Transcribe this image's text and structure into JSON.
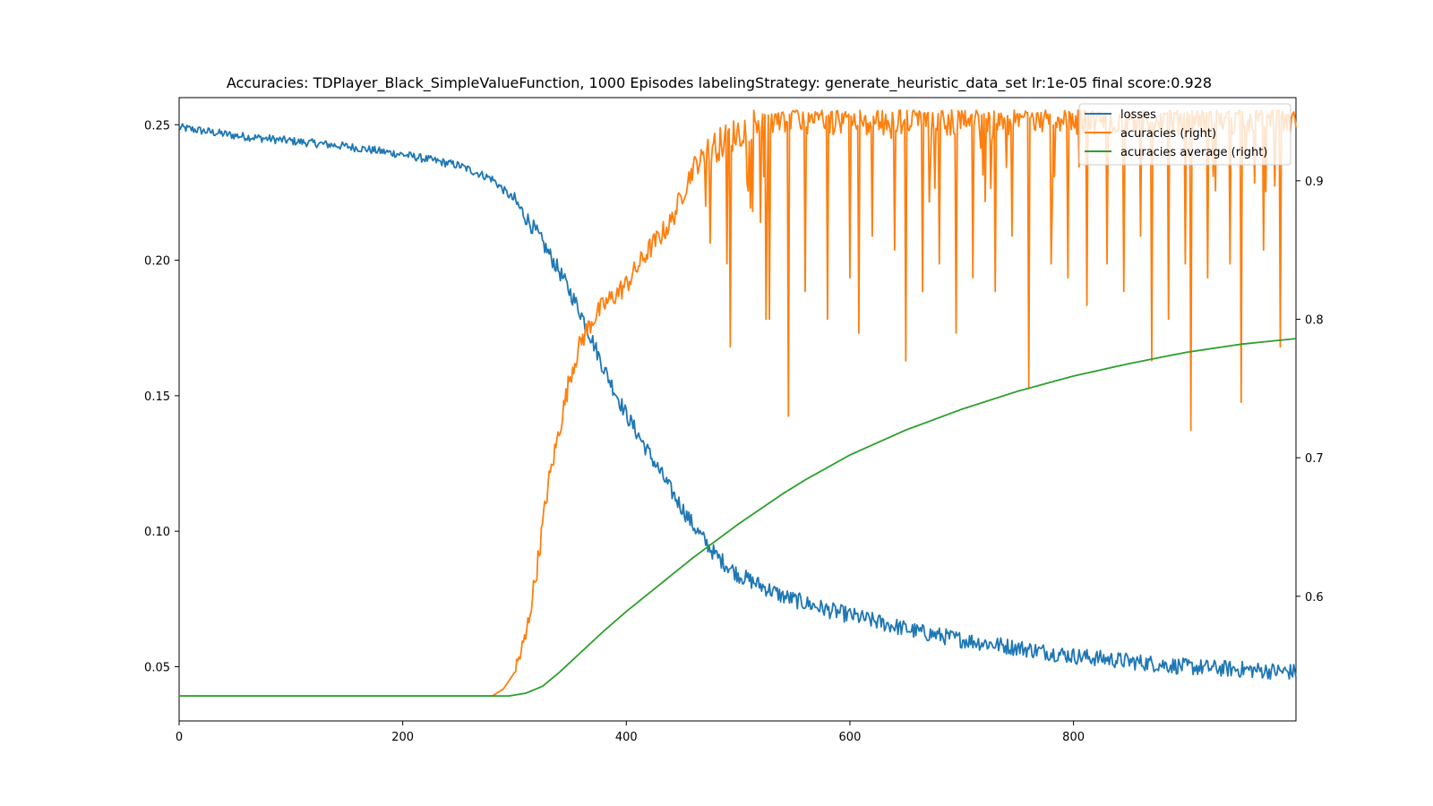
{
  "chart_data": {
    "type": "line",
    "title": "Accuracies: TDPlayer_Black_SimpleValueFunction, 1000 Episodes labelingStrategy: generate_heuristic_data_set lr:1e-05 final score:0.928",
    "xlabel": "",
    "ylabel": "",
    "ylabel_right": "",
    "xlim": [
      0,
      999
    ],
    "ylim_left": [
      0.03,
      0.26
    ],
    "ylim_right": [
      0.51,
      0.96
    ],
    "x_ticks": [
      0,
      200,
      400,
      600,
      800
    ],
    "y_ticks_left": [
      0.05,
      0.1,
      0.15,
      0.2,
      0.25
    ],
    "y_ticks_right": [
      0.6,
      0.7,
      0.8,
      0.9
    ],
    "grid": false,
    "legend_position": "top-right",
    "series": [
      {
        "name": "losses",
        "axis": "left",
        "color": "#1f77b4",
        "noise": 0.0028,
        "x": [
          0,
          50,
          100,
          150,
          200,
          250,
          280,
          300,
          320,
          340,
          360,
          380,
          400,
          420,
          440,
          460,
          480,
          500,
          540,
          580,
          620,
          660,
          700,
          750,
          800,
          850,
          900,
          950,
          999
        ],
        "values": [
          0.249,
          0.246,
          0.244,
          0.242,
          0.239,
          0.235,
          0.23,
          0.222,
          0.21,
          0.196,
          0.18,
          0.16,
          0.143,
          0.129,
          0.115,
          0.102,
          0.091,
          0.084,
          0.076,
          0.071,
          0.067,
          0.063,
          0.06,
          0.057,
          0.054,
          0.052,
          0.05,
          0.049,
          0.048
        ]
      },
      {
        "name": "acuracies (right)",
        "axis": "right",
        "color": "#ff7f0e",
        "x": [
          0,
          280,
          290,
          300,
          310,
          320,
          330,
          340,
          350,
          360,
          370,
          380,
          400,
          420,
          440,
          450,
          460,
          480,
          500,
          520,
          999
        ],
        "values": [
          0.528,
          0.528,
          0.533,
          0.545,
          0.57,
          0.62,
          0.68,
          0.72,
          0.76,
          0.785,
          0.8,
          0.81,
          0.825,
          0.85,
          0.87,
          0.89,
          0.91,
          0.925,
          0.935,
          0.945,
          0.945
        ],
        "dips": [
          [
            475,
            0.855
          ],
          [
            490,
            0.84
          ],
          [
            493,
            0.78
          ],
          [
            520,
            0.87
          ],
          [
            525,
            0.8
          ],
          [
            528,
            0.8
          ],
          [
            545,
            0.73
          ],
          [
            560,
            0.82
          ],
          [
            580,
            0.8
          ],
          [
            600,
            0.83
          ],
          [
            608,
            0.79
          ],
          [
            620,
            0.86
          ],
          [
            640,
            0.85
          ],
          [
            650,
            0.77
          ],
          [
            665,
            0.82
          ],
          [
            680,
            0.84
          ],
          [
            695,
            0.79
          ],
          [
            710,
            0.83
          ],
          [
            730,
            0.82
          ],
          [
            745,
            0.86
          ],
          [
            760,
            0.75
          ],
          [
            780,
            0.84
          ],
          [
            795,
            0.83
          ],
          [
            812,
            0.81
          ],
          [
            830,
            0.84
          ],
          [
            845,
            0.82
          ],
          [
            860,
            0.86
          ],
          [
            870,
            0.77
          ],
          [
            885,
            0.8
          ],
          [
            900,
            0.84
          ],
          [
            905,
            0.72
          ],
          [
            920,
            0.83
          ],
          [
            940,
            0.84
          ],
          [
            950,
            0.74
          ],
          [
            970,
            0.85
          ],
          [
            985,
            0.78
          ]
        ]
      },
      {
        "name": "acuracies average (right)",
        "axis": "right",
        "color": "#2ca02c",
        "x": [
          0,
          295,
          310,
          325,
          340,
          360,
          380,
          400,
          420,
          440,
          460,
          480,
          500,
          520,
          540,
          560,
          580,
          600,
          650,
          700,
          750,
          800,
          850,
          900,
          950,
          999
        ],
        "values": [
          0.528,
          0.528,
          0.53,
          0.535,
          0.545,
          0.56,
          0.575,
          0.589,
          0.602,
          0.615,
          0.628,
          0.64,
          0.652,
          0.663,
          0.674,
          0.684,
          0.693,
          0.702,
          0.72,
          0.735,
          0.748,
          0.759,
          0.768,
          0.776,
          0.782,
          0.786
        ]
      }
    ]
  }
}
